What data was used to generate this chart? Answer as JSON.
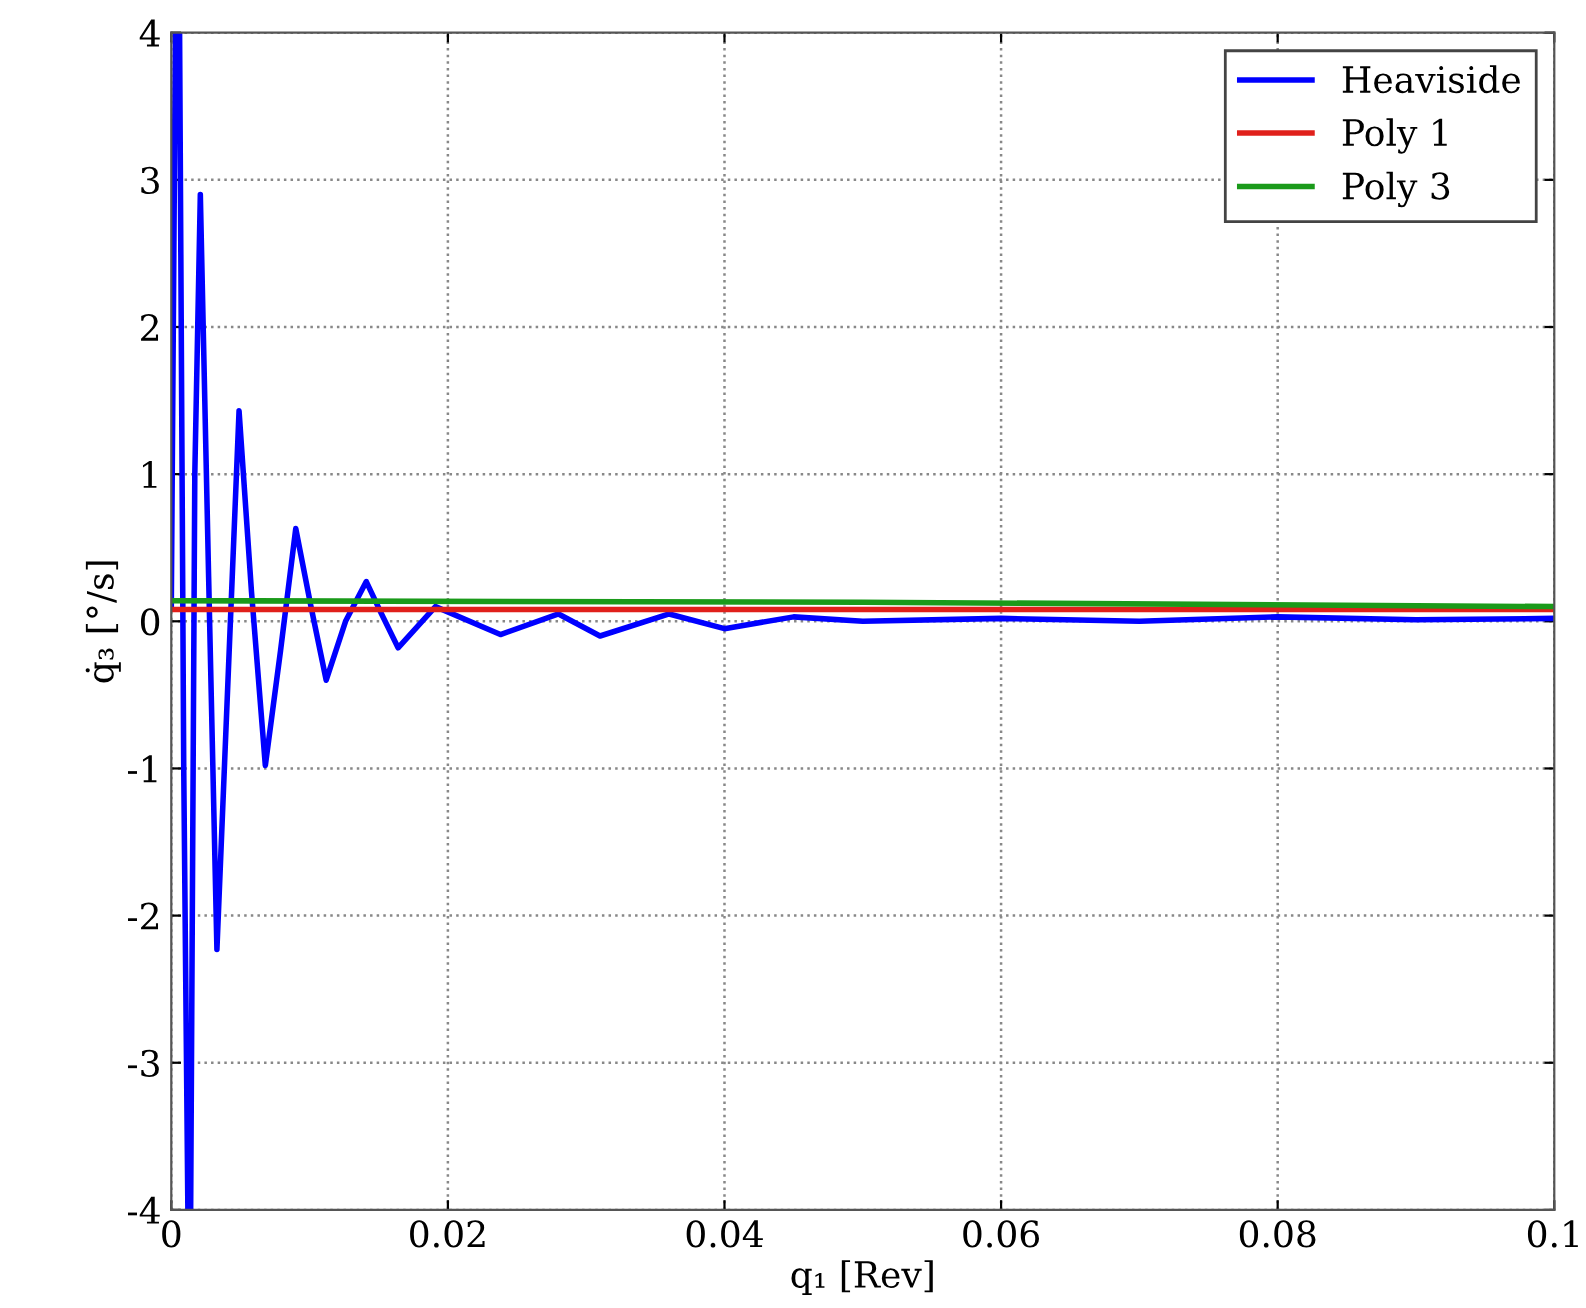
{
  "chart_data": {
    "type": "line",
    "xlabel": "q₁ [Rev]",
    "ylabel": "q̇₃ [°/s]",
    "xlim": [
      0,
      0.1
    ],
    "ylim": [
      -4,
      4
    ],
    "xticks": [
      0,
      0.02,
      0.04,
      0.06,
      0.08,
      0.1
    ],
    "yticks": [
      -4,
      -3,
      -2,
      -1,
      0,
      1,
      2,
      3,
      4
    ],
    "grid": true,
    "legend": "top right",
    "line_style": "solid",
    "series": [
      {
        "name": "Heaviside",
        "color": "#0000ff",
        "x": [
          0,
          0.0003,
          0.0006,
          0.0009,
          0.0012,
          0.0014,
          0.0017,
          0.0021,
          0.0027,
          0.0033,
          0.0041,
          0.0049,
          0.0058,
          0.0068,
          0.0079,
          0.009,
          0.0101,
          0.0112,
          0.0126,
          0.0141,
          0.0152,
          0.0164,
          0.0191,
          0.0238,
          0.028,
          0.031,
          0.036,
          0.04,
          0.045,
          0.05,
          0.06,
          0.07,
          0.08,
          0.09,
          0.1
        ],
        "values": [
          0.1,
          4,
          4,
          -1,
          -4,
          -4,
          1,
          2.9,
          0.3,
          -2.23,
          -0.4,
          1.43,
          0.2,
          -0.98,
          -0.2,
          0.63,
          0.1,
          -0.4,
          0,
          0.27,
          0.05,
          -0.18,
          0.1,
          -0.09,
          0.05,
          -0.1,
          0.05,
          -0.05,
          0.03,
          0,
          0.02,
          0,
          0.03,
          0.01,
          0.02
        ]
      },
      {
        "name": "Poly 1",
        "color": "#e0201b",
        "x": [
          0,
          0.1
        ],
        "values": [
          0.08,
          0.08
        ]
      },
      {
        "name": "Poly 3",
        "color": "#1a9a1a",
        "x": [
          0,
          0.05,
          0.1
        ],
        "values": [
          0.14,
          0.13,
          0.1
        ]
      }
    ]
  }
}
